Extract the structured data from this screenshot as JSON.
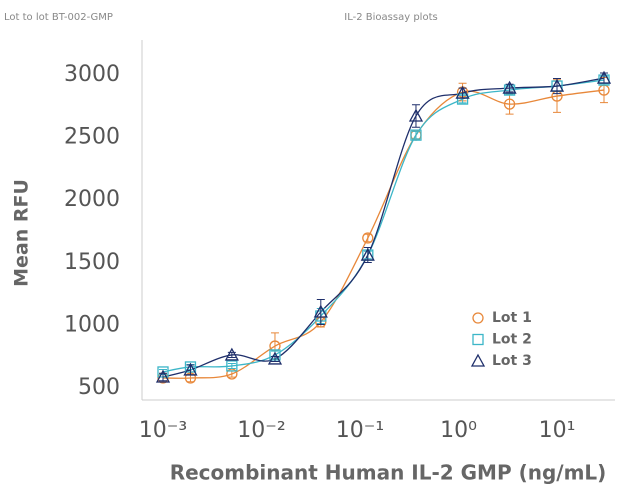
{
  "chart_data": {
    "type": "scatter",
    "header_left": "Lot to lot BT-002-GMP",
    "title": "IL-2 Bioassay plots",
    "x_label": "Recombinant Human IL-2 GMP (ng/mL)",
    "y_label": "Mean RFU",
    "x": [
      0.001,
      0.0019,
      0.005,
      0.0137,
      0.04,
      0.12,
      0.37,
      1.1,
      3.3,
      10,
      30
    ],
    "series": [
      {
        "name": "Lot 1",
        "color": "#e8883a",
        "marker": "circle",
        "values": [
          580,
          580,
          612,
          835,
          1027,
          1698,
          2520,
          2864,
          2768,
          2832,
          2880
        ],
        "errors": [
          30,
          30,
          25,
          105,
          40,
          30,
          30,
          70,
          80,
          130,
          100
        ]
      },
      {
        "name": "Lot 2",
        "color": "#3cb6c8",
        "marker": "square",
        "values": [
          628,
          668,
          676,
          764,
          1075,
          1562,
          2520,
          2808,
          2880,
          2912,
          2960
        ],
        "errors": [
          20,
          20,
          20,
          30,
          60,
          30,
          30,
          30,
          30,
          40,
          30
        ]
      },
      {
        "name": "Lot 3",
        "color": "#1f2f6b",
        "marker": "triangle",
        "values": [
          588,
          644,
          764,
          732,
          1107,
          1562,
          2673,
          2856,
          2896,
          2912,
          2976
        ],
        "errors": [
          30,
          40,
          20,
          20,
          100,
          60,
          90,
          40,
          30,
          60,
          40
        ]
      }
    ],
    "log_x": true,
    "xlim": [
      0.000612,
      38.8
    ],
    "xticks": [
      {
        "value": 0.001,
        "label": "10⁻³"
      },
      {
        "value": 0.01,
        "label": "10⁻²"
      },
      {
        "value": 0.1,
        "label": "10⁻¹"
      },
      {
        "value": 1,
        "label": "10⁰"
      },
      {
        "value": 10,
        "label": "10¹"
      }
    ],
    "ylim": [
      404,
      3280
    ],
    "yticks": [
      500,
      1000,
      1500,
      2000,
      2500,
      3000
    ],
    "legend": "lower right"
  }
}
